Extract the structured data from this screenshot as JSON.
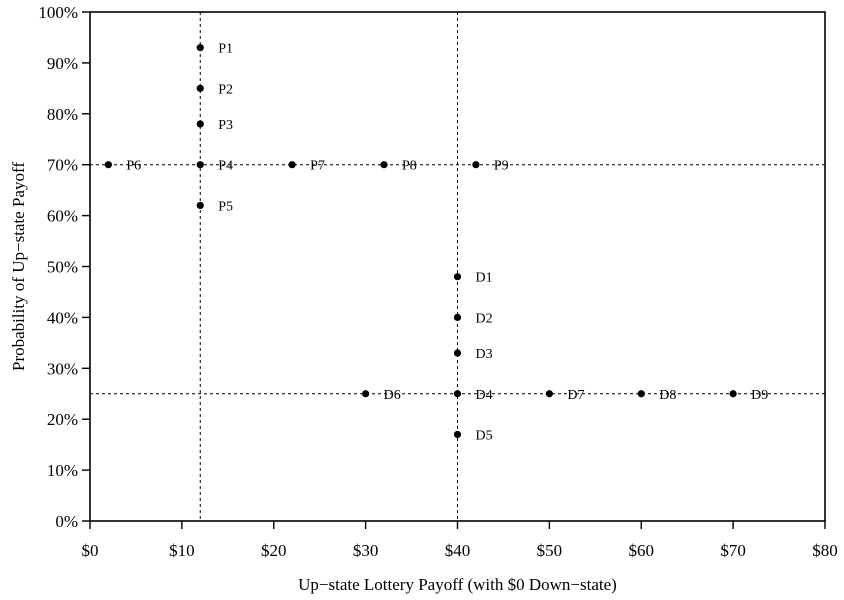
{
  "chart_data": {
    "type": "scatter",
    "title": "",
    "xlabel": "Up−state Lottery Payoff (with $0 Down−state)",
    "ylabel": "Probability of Up−state Payoff",
    "xlim": [
      0,
      80
    ],
    "ylim": [
      0,
      1
    ],
    "x_ticks": [
      0,
      10,
      20,
      30,
      40,
      50,
      60,
      70,
      80
    ],
    "x_tick_labels": [
      "$0",
      "$10",
      "$20",
      "$30",
      "$40",
      "$50",
      "$60",
      "$70",
      "$80"
    ],
    "y_ticks": [
      0,
      0.1,
      0.2,
      0.3,
      0.4,
      0.5,
      0.6,
      0.7,
      0.8,
      0.9,
      1.0
    ],
    "y_tick_labels": [
      "0%",
      "10%",
      "20%",
      "30%",
      "40%",
      "50%",
      "60%",
      "70%",
      "80%",
      "90%",
      "100%"
    ],
    "grid": false,
    "reference_lines": {
      "vertical": [
        12,
        40
      ],
      "horizontal": [
        0.7,
        0.25
      ]
    },
    "points": [
      {
        "label": "P1",
        "x": 12,
        "y": 0.93
      },
      {
        "label": "P2",
        "x": 12,
        "y": 0.85
      },
      {
        "label": "P3",
        "x": 12,
        "y": 0.78
      },
      {
        "label": "P4",
        "x": 12,
        "y": 0.7
      },
      {
        "label": "P5",
        "x": 12,
        "y": 0.62
      },
      {
        "label": "P6",
        "x": 2,
        "y": 0.7
      },
      {
        "label": "P7",
        "x": 22,
        "y": 0.7
      },
      {
        "label": "P8",
        "x": 32,
        "y": 0.7
      },
      {
        "label": "P9",
        "x": 42,
        "y": 0.7
      },
      {
        "label": "D1",
        "x": 40,
        "y": 0.48
      },
      {
        "label": "D2",
        "x": 40,
        "y": 0.4
      },
      {
        "label": "D3",
        "x": 40,
        "y": 0.33
      },
      {
        "label": "D4",
        "x": 40,
        "y": 0.25
      },
      {
        "label": "D5",
        "x": 40,
        "y": 0.17
      },
      {
        "label": "D6",
        "x": 30,
        "y": 0.25
      },
      {
        "label": "D7",
        "x": 50,
        "y": 0.25
      },
      {
        "label": "D8",
        "x": 60,
        "y": 0.25
      },
      {
        "label": "D9",
        "x": 70,
        "y": 0.25
      }
    ],
    "colors": {
      "points": "#000000",
      "axes": "#000000",
      "reference": "#000000"
    }
  }
}
